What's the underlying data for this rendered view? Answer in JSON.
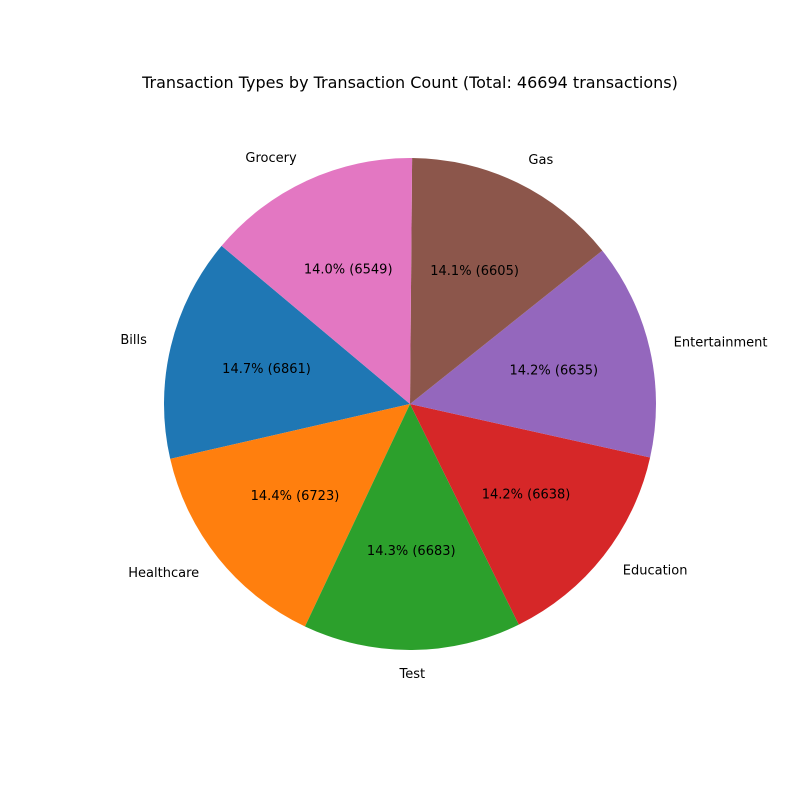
{
  "chart_data": {
    "type": "pie",
    "title": "Transaction Types by Transaction Count (Total: 46694 transactions)",
    "categories": [
      "Bills",
      "Healthcare",
      "Test",
      "Education",
      "Entertainment",
      "Gas",
      "Grocery"
    ],
    "values": [
      6861,
      6723,
      6683,
      6638,
      6635,
      6605,
      6549
    ],
    "value_labels": [
      "14.7% (6861)",
      "14.4% (6723)",
      "14.3% (6683)",
      "14.2% (6638)",
      "14.2% (6635)",
      "14.1% (6605)",
      "14.0% (6549)"
    ],
    "colors": [
      "#1f77b4",
      "#ff7f0e",
      "#2ca02c",
      "#d62728",
      "#9467bd",
      "#8c564b",
      "#e377c2"
    ],
    "start_angle_deg": 140,
    "direction": "counterclockwise"
  }
}
